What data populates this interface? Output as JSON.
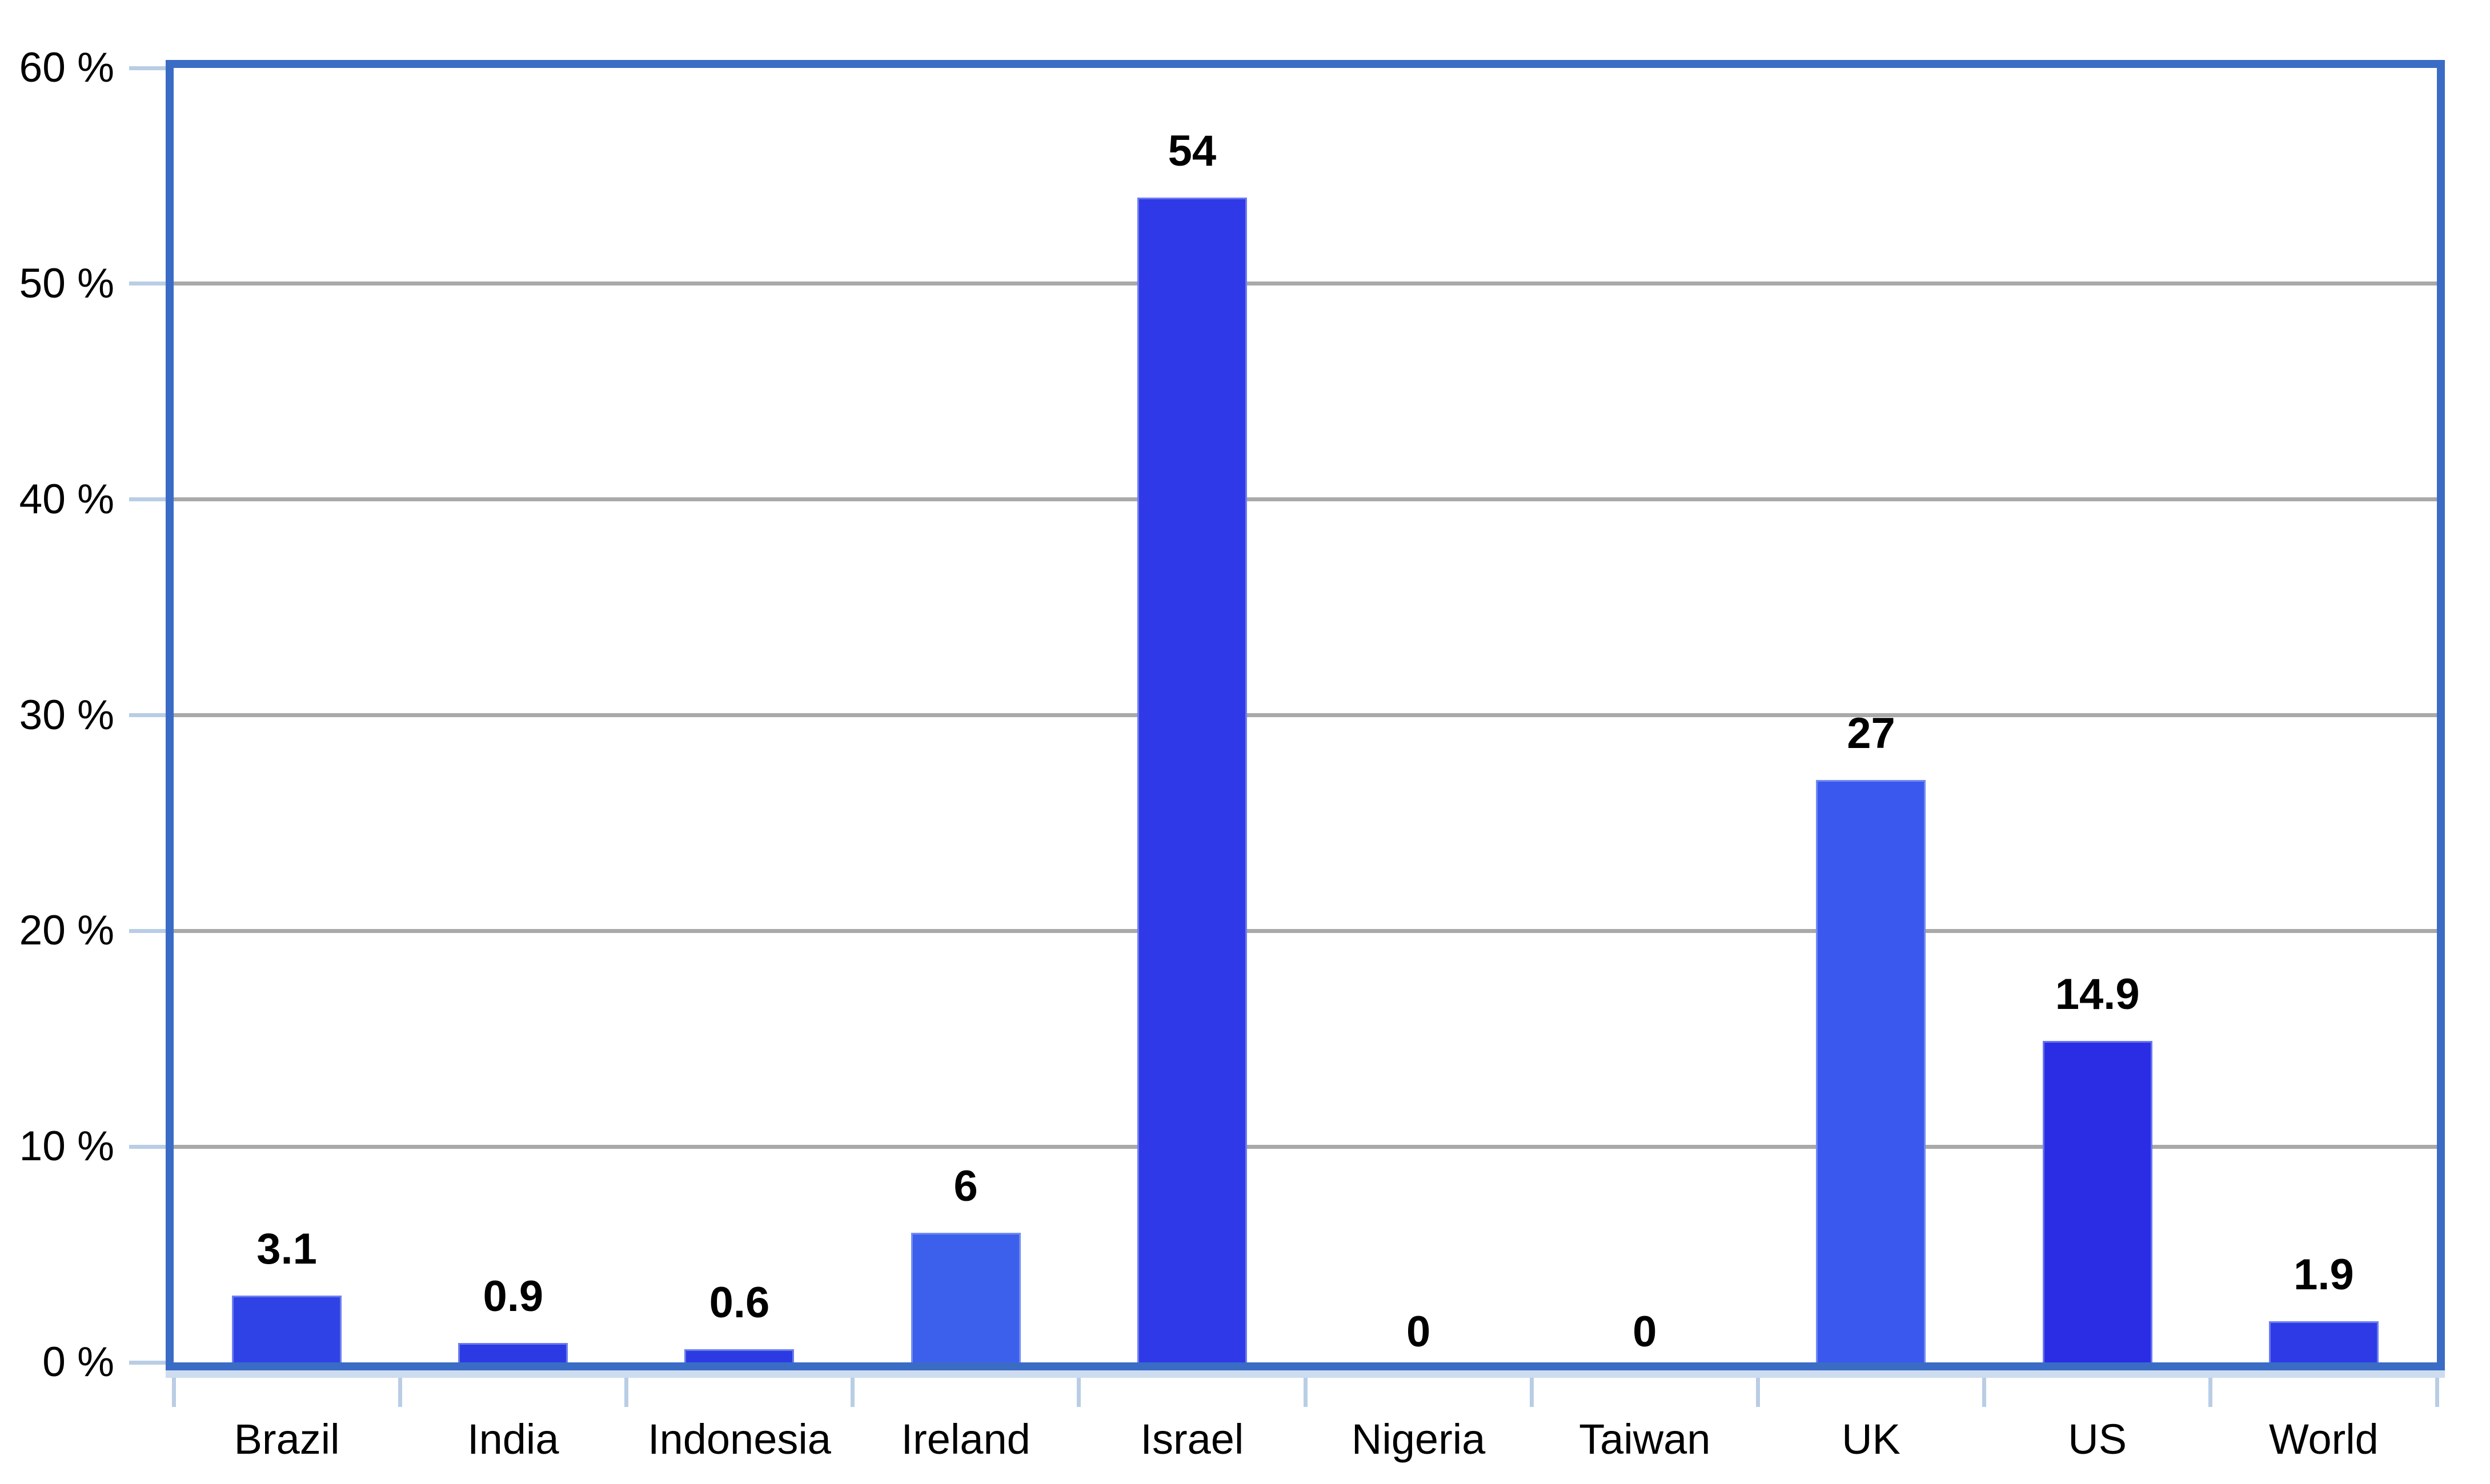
{
  "page": {
    "background": "#ffffff"
  },
  "chart_data": {
    "type": "bar",
    "title": "",
    "xlabel": "",
    "ylabel": "",
    "legend": null,
    "grid": true,
    "categories": [
      "Brazil",
      "India",
      "Indonesia",
      "Ireland",
      "Israel",
      "Nigeria",
      "Taiwan",
      "UK",
      "US",
      "World"
    ],
    "values": [
      3.1,
      0.9,
      0.6,
      6,
      54,
      0,
      0,
      27,
      14.9,
      1.9
    ],
    "value_labels": [
      "3.1",
      "0.9",
      "0.6",
      "6",
      "54",
      "0",
      "0",
      "27",
      "14.9",
      "1.9"
    ],
    "bar_colors": [
      "#2F42E5",
      "#2C3AE3",
      "#2C3AE3",
      "#3C60EB",
      "#3039E7",
      "#2E3BE5",
      "#2E3BE5",
      "#3A58EE",
      "#2B2DE5",
      "#2E3AE6"
    ],
    "y_axis": {
      "min": 0,
      "max": 60,
      "tick_step": 10,
      "tick_labels": [
        "0 %",
        "10 %",
        "20 %",
        "30 %",
        "40 %",
        "50 %",
        "60 %"
      ]
    },
    "colors": {
      "frame_border": "#3A6CC6",
      "gridline": "#A9A9A9",
      "tick": "#B9CDE5",
      "axis_strip": "#CDDCEE",
      "text": "#000000",
      "plot_background": "#FFFFFF"
    }
  }
}
